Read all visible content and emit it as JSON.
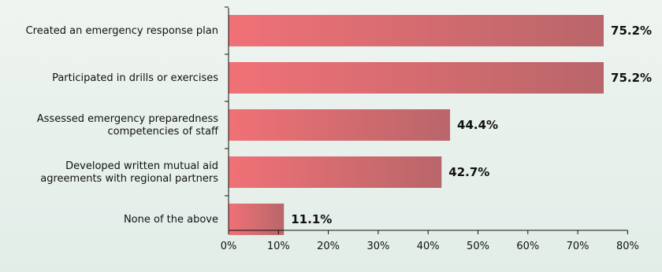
{
  "chart_data": {
    "type": "bar",
    "orientation": "horizontal",
    "categories": [
      [
        "Created an emergency response plan"
      ],
      [
        "Participated in drills or exercises"
      ],
      [
        "Assessed emergency preparedness",
        "competencies of staff"
      ],
      [
        "Developed written mutual aid",
        "agreements with regional partners"
      ],
      [
        "None of the above"
      ]
    ],
    "values": [
      75.2,
      75.2,
      44.4,
      42.7,
      11.1
    ],
    "value_labels": [
      "75.2%",
      "75.2%",
      "44.4%",
      "42.7%",
      "11.1%"
    ],
    "xlim": [
      0,
      80
    ],
    "xticks": [
      0,
      10,
      20,
      30,
      40,
      50,
      60,
      70,
      80
    ],
    "xtick_labels": [
      "0%",
      "10%",
      "20%",
      "30%",
      "40%",
      "50%",
      "60%",
      "70%",
      "80%"
    ],
    "title": "",
    "xlabel": "",
    "ylabel": "",
    "grid": false,
    "colors": {
      "bar_start": "#f07176",
      "bar_end": "#b9666a",
      "axis": "#111111"
    }
  }
}
